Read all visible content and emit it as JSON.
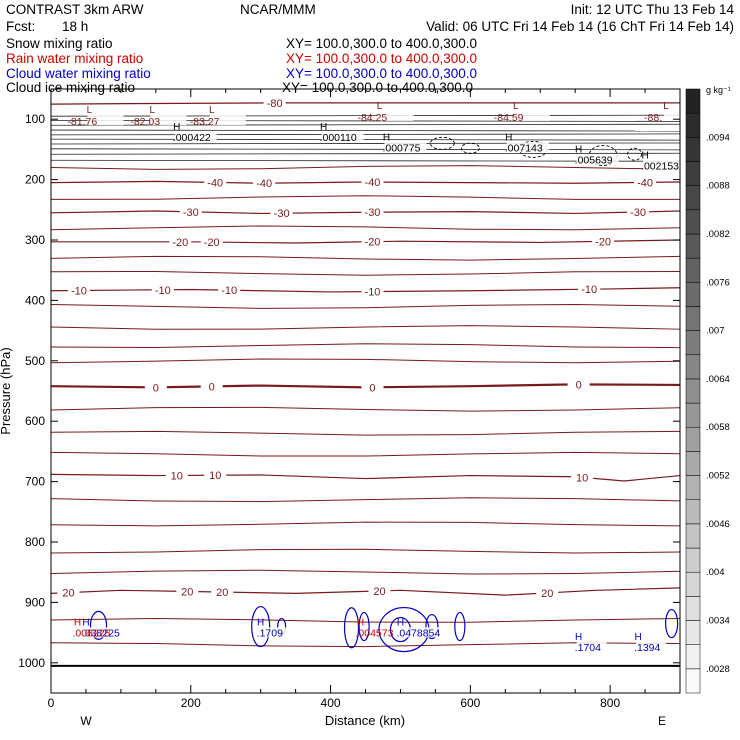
{
  "header": {
    "model": "CONTRAST  3km ARW",
    "center": "NCAR/MMM",
    "init": "Init: 12 UTC Thu 13 Feb 14",
    "fcst_label": "Fcst:",
    "fcst_value": "18 h",
    "valid": "Valid: 06 UTC Fri 14 Feb 14 (16 ChT Fri 14 Feb 14)"
  },
  "fields": [
    {
      "name": "Snow mixing ratio",
      "xy": "XY= 100.0,300.0 to 400.0,300.0",
      "color": "#000000"
    },
    {
      "name": "Rain water mixing ratio",
      "xy": "XY= 100.0,300.0 to 400.0,300.0",
      "color": "#d00000"
    },
    {
      "name": "Cloud water mixing ratio",
      "xy": "XY= 100.0,300.0 to 400.0,300.0",
      "color": "#0000c0"
    },
    {
      "name": "Cloud ice mixing ratio",
      "xy": "XY= 100.0,300.0 to 400.0,300.0",
      "color": "#000000"
    }
  ],
  "colors": {
    "temperature_contour": "#7a1a1a",
    "cloud_water_contour": "#0000c0",
    "rain_label": "#d00000",
    "ice_contour": "#000000"
  },
  "chart_data": {
    "type": "contour",
    "xlabel": "Distance (km)",
    "ylabel": "Pressure (hPa)",
    "xlim": [
      0,
      900
    ],
    "ylim": [
      1050,
      50
    ],
    "x_ticks": [
      0,
      200,
      400,
      600,
      800
    ],
    "y_ticks": [
      100,
      200,
      300,
      400,
      500,
      600,
      700,
      800,
      900,
      1000
    ],
    "direction_labels": {
      "left": "W",
      "right": "E"
    },
    "temperature_isotherms": [
      {
        "value": -80,
        "label": "-80",
        "label_x": 320,
        "points": [
          [
            0,
            75
          ],
          [
            150,
            74
          ],
          [
            320,
            73
          ],
          [
            500,
            73
          ],
          [
            700,
            73
          ],
          [
            900,
            73
          ]
        ]
      },
      {
        "value": -40,
        "label": "-40",
        "label_xs": [
          235,
          305,
          460,
          850
        ],
        "points": [
          [
            0,
            205
          ],
          [
            150,
            203
          ],
          [
            300,
            206
          ],
          [
            450,
            204
          ],
          [
            600,
            205
          ],
          [
            750,
            206
          ],
          [
            900,
            204
          ]
        ]
      },
      {
        "value": -30,
        "label": "-30",
        "label_xs": [
          200,
          330,
          460,
          840
        ],
        "points": [
          [
            0,
            255
          ],
          [
            150,
            252
          ],
          [
            300,
            256
          ],
          [
            450,
            254
          ],
          [
            600,
            253
          ],
          [
            750,
            256
          ],
          [
            900,
            252
          ]
        ]
      },
      {
        "value": -20,
        "label": "-20",
        "label_xs": [
          185,
          230,
          460,
          790
        ],
        "points": [
          [
            0,
            303
          ],
          [
            200,
            303
          ],
          [
            350,
            305
          ],
          [
            500,
            302
          ],
          [
            700,
            304
          ],
          [
            900,
            300
          ]
        ]
      },
      {
        "value": -10,
        "label": "-10",
        "label_xs": [
          40,
          160,
          255,
          460,
          770
        ],
        "points": [
          [
            0,
            384
          ],
          [
            200,
            382
          ],
          [
            400,
            386
          ],
          [
            600,
            384
          ],
          [
            800,
            381
          ],
          [
            900,
            379
          ]
        ]
      },
      {
        "value": 0,
        "label": "0",
        "label_xs": [
          150,
          230,
          460,
          755
        ],
        "points": [
          [
            0,
            542
          ],
          [
            150,
            544
          ],
          [
            300,
            541
          ],
          [
            450,
            544
          ],
          [
            600,
            542
          ],
          [
            750,
            539
          ],
          [
            900,
            540
          ]
        ]
      },
      {
        "value": 10,
        "label": "10",
        "label_xs": [
          180,
          235,
          760
        ],
        "points": [
          [
            0,
            688
          ],
          [
            150,
            690
          ],
          [
            300,
            689
          ],
          [
            450,
            695
          ],
          [
            600,
            690
          ],
          [
            750,
            692
          ],
          [
            820,
            699
          ],
          [
            900,
            690
          ]
        ]
      },
      {
        "value": 20,
        "label": "20",
        "label_xs": [
          25,
          195,
          245,
          470,
          710
        ],
        "points": [
          [
            0,
            885
          ],
          [
            100,
            880
          ],
          [
            200,
            882
          ],
          [
            350,
            885
          ],
          [
            500,
            880
          ],
          [
            650,
            888
          ],
          [
            780,
            880
          ],
          [
            900,
            876
          ]
        ]
      }
    ],
    "ice_extrema": [
      {
        "type": "L",
        "x": 55,
        "p": 90,
        "label": "-81.76"
      },
      {
        "type": "L",
        "x": 145,
        "p": 90,
        "label": "-82.03"
      },
      {
        "type": "L",
        "x": 230,
        "p": 90,
        "label": "-83.27"
      },
      {
        "type": "L",
        "x": 470,
        "p": 83,
        "label": "-84.25"
      },
      {
        "type": "L",
        "x": 665,
        "p": 83,
        "label": "-84.59"
      },
      {
        "type": "L",
        "x": 880,
        "p": 83,
        "label": "-88."
      },
      {
        "type": "H",
        "x": 180,
        "p": 118,
        "label": ".000422"
      },
      {
        "type": "H",
        "x": 390,
        "p": 118,
        "label": ".000110"
      },
      {
        "type": "H",
        "x": 480,
        "p": 135,
        "label": ".000775"
      },
      {
        "type": "H",
        "x": 655,
        "p": 135,
        "label": ".007143"
      },
      {
        "type": "H",
        "x": 755,
        "p": 155,
        "label": ".005639"
      },
      {
        "type": "H",
        "x": 850,
        "p": 165,
        "label": ".002153"
      }
    ],
    "cloud_water_extrema": [
      {
        "type": "H",
        "x": 50,
        "p": 938,
        "label": ".038225"
      },
      {
        "type": "H",
        "x": 300,
        "p": 938,
        "label": ".1709"
      },
      {
        "type": "H",
        "x": 500,
        "p": 938,
        "label": ".0478854"
      },
      {
        "type": "H",
        "x": 755,
        "p": 962,
        "label": ".1704"
      },
      {
        "type": "H",
        "x": 840,
        "p": 962,
        "label": ".1394"
      }
    ],
    "rain_extrema": [
      {
        "type": "H",
        "x": 45,
        "p": 938,
        "label": ".006225"
      },
      {
        "type": "H",
        "x": 450,
        "p": 938,
        "label": ".004573"
      }
    ],
    "colorbar": {
      "unit": "g kg⁻¹",
      "min": 0.0025,
      "max": 0.01,
      "step": 0.0003,
      "tick_labels": [
        ".0028",
        ".0034",
        ".004",
        ".0046",
        ".0052",
        ".0058",
        ".0064",
        ".007",
        ".0076",
        ".0082",
        ".0088",
        ".0094"
      ]
    }
  }
}
